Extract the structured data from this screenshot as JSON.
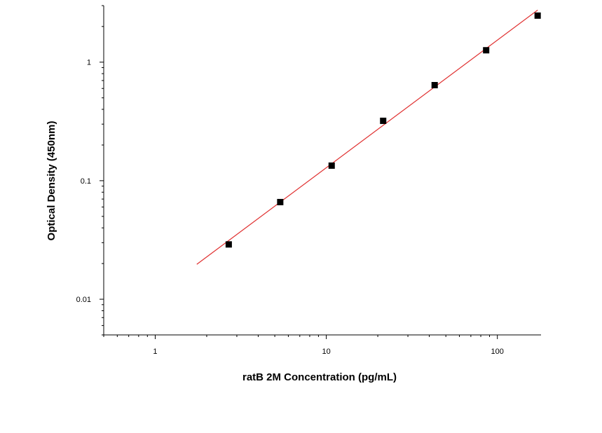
{
  "chart_data": {
    "type": "scatter",
    "title": "",
    "xlabel": "ratB 2M Concentration (pg/mL)",
    "ylabel": "Optical Density (450nm)",
    "x_scale": "log",
    "y_scale": "log",
    "xlim": [
      0.5,
      180
    ],
    "ylim": [
      0.005,
      3.0
    ],
    "x_major_ticks": [
      1,
      10,
      100
    ],
    "x_tick_labels": [
      "1",
      "10",
      "100"
    ],
    "y_major_ticks": [
      0.01,
      0.1,
      1
    ],
    "y_tick_labels": [
      "0.01",
      "0.1",
      "1"
    ],
    "grid": false,
    "legend": "none",
    "marker_color": "#000000",
    "fit_line_color": "#e03030",
    "series": [
      {
        "x": [
          2.69,
          5.38,
          10.75,
          21.5,
          43,
          86,
          172
        ],
        "y": [
          0.029,
          0.066,
          0.134,
          0.32,
          0.64,
          1.26,
          2.47
        ]
      }
    ],
    "fit_line": {
      "x": [
        1.75,
        172
      ],
      "y": [
        0.0197,
        2.75
      ]
    }
  }
}
